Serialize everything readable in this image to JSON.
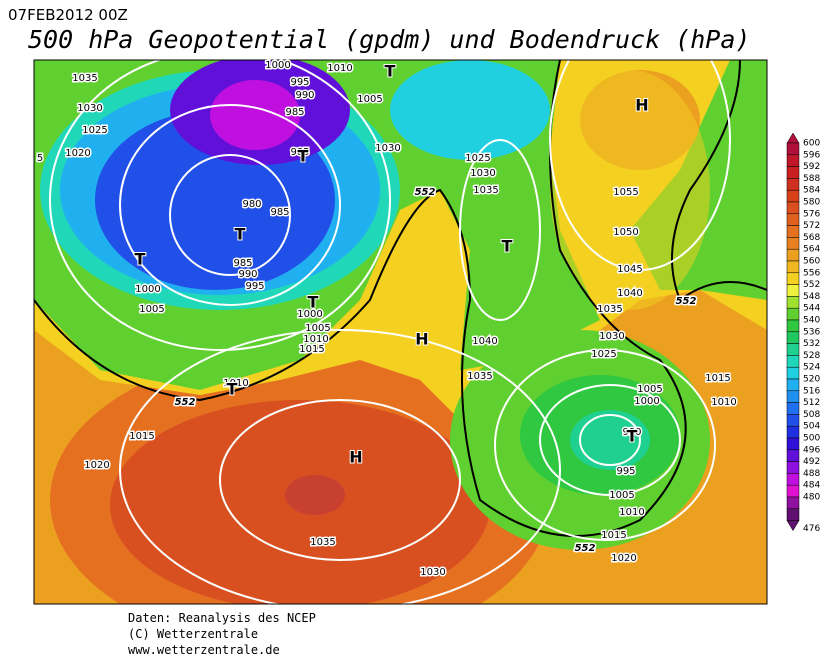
{
  "header": {
    "date": "07FEB2012 00Z",
    "title": "500 hPa Geopotential (gpdm) und Bodendruck (hPa)"
  },
  "isobar_labels": [
    1035,
    1030,
    1025,
    1020,
    5,
    1000,
    1010,
    995,
    990,
    1005,
    985,
    1030,
    985,
    980,
    985,
    985,
    990,
    995,
    1000,
    1005,
    1000,
    1005,
    1010,
    1015,
    1010,
    1015,
    1020,
    1035,
    1030,
    1025,
    1030,
    1035,
    1040,
    1035,
    1055,
    1050,
    1045,
    1040,
    1035,
    1030,
    1025,
    1005,
    1000,
    995,
    1005,
    1010,
    1015,
    1020,
    1015,
    1010,
    990
  ],
  "contour_labels": [
    552,
    552,
    552,
    552
  ],
  "markers": [
    "T",
    "H",
    "T",
    "T",
    "T",
    "T",
    "T",
    "H",
    "T",
    "H",
    "T"
  ],
  "colorbar": {
    "levels": [
      {
        "value": 600,
        "color": "#b0103a"
      },
      {
        "value": 596,
        "color": "#c0182a"
      },
      {
        "value": 592,
        "color": "#c82020"
      },
      {
        "value": 588,
        "color": "#d03020"
      },
      {
        "value": 584,
        "color": "#d84018"
      },
      {
        "value": 580,
        "color": "#dc5020"
      },
      {
        "value": 576,
        "color": "#e06020"
      },
      {
        "value": 572,
        "color": "#e47020"
      },
      {
        "value": 568,
        "color": "#e88020"
      },
      {
        "value": 564,
        "color": "#eca020"
      },
      {
        "value": 560,
        "color": "#f0b820"
      },
      {
        "value": 556,
        "color": "#f4d020"
      },
      {
        "value": 552,
        "color": "#f0f040"
      },
      {
        "value": 548,
        "color": "#a0e030"
      },
      {
        "value": 544,
        "color": "#60d030"
      },
      {
        "value": 540,
        "color": "#30c840"
      },
      {
        "value": 536,
        "color": "#20c860"
      },
      {
        "value": 532,
        "color": "#20d090"
      },
      {
        "value": 528,
        "color": "#20d8b8"
      },
      {
        "value": 524,
        "color": "#20d0e0"
      },
      {
        "value": 520,
        "color": "#20b0f0"
      },
      {
        "value": 516,
        "color": "#2090f0"
      },
      {
        "value": 512,
        "color": "#2070f0"
      },
      {
        "value": 508,
        "color": "#2050e8"
      },
      {
        "value": 504,
        "color": "#2030e0"
      },
      {
        "value": 500,
        "color": "#3010d8"
      },
      {
        "value": 496,
        "color": "#6010d8"
      },
      {
        "value": 492,
        "color": "#9010e0"
      },
      {
        "value": 488,
        "color": "#c010e0"
      },
      {
        "value": 484,
        "color": "#e010d0"
      },
      {
        "value": 480,
        "color": "#9010a0"
      },
      {
        "value": 476,
        "color": "#601070"
      }
    ]
  },
  "footer": {
    "source": "Daten: Reanalysis des NCEP",
    "copyright": "(C) Wetterzentrale",
    "url": "www.wetterzentrale.de"
  }
}
